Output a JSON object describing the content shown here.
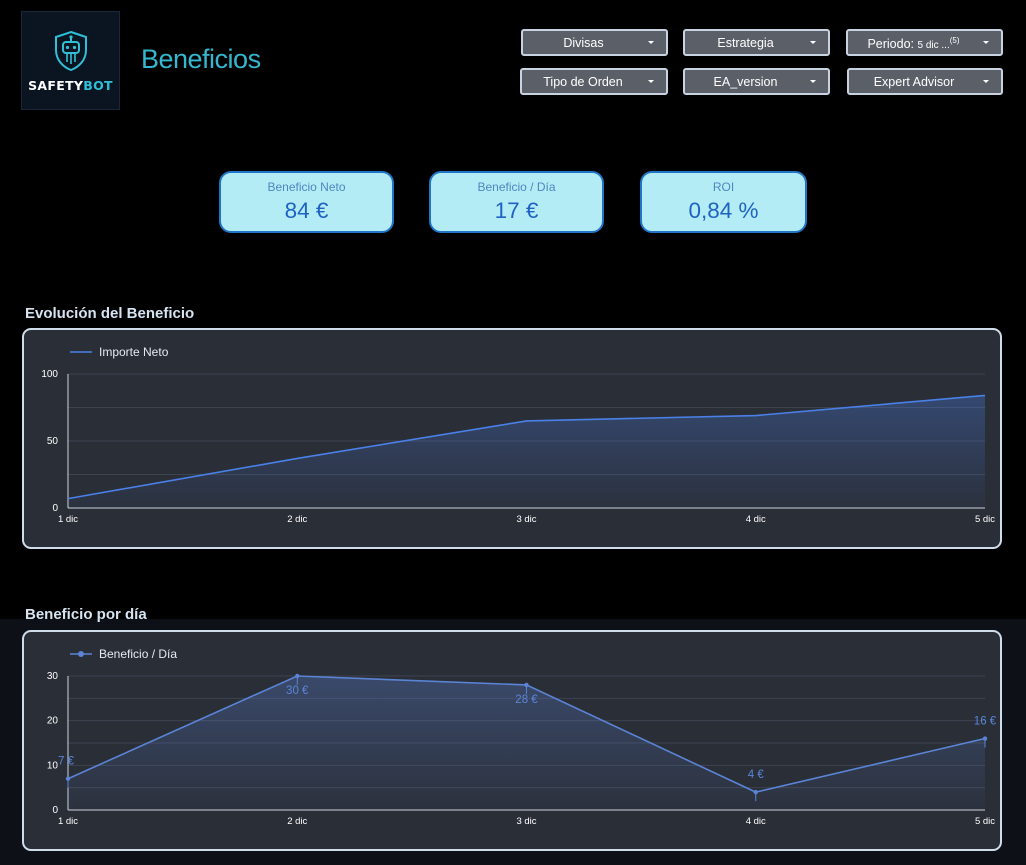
{
  "brand": {
    "logo_text_1": "SAFETY",
    "logo_text_2": "BOT",
    "icon": "robot-shield-icon",
    "accent": "#2fc0d8"
  },
  "header": {
    "title": "Beneficios"
  },
  "filters": [
    {
      "id": "divisas",
      "label": "Divisas"
    },
    {
      "id": "estrategia",
      "label": "Estrategia"
    },
    {
      "id": "periodo",
      "label": "Periodo:",
      "value": "5 dic ...",
      "count": "(5)"
    },
    {
      "id": "tipo-de-orden",
      "label": "Tipo de Orden"
    },
    {
      "id": "ea-version",
      "label": "EA_version"
    },
    {
      "id": "expert-advisor",
      "label": "Expert Advisor"
    }
  ],
  "kpis": [
    {
      "label": "Beneficio Neto",
      "value": "84 €"
    },
    {
      "label": "Beneficio / Día",
      "value": "17 €"
    },
    {
      "label": "ROI",
      "value": "0,84 %"
    }
  ],
  "sections": {
    "evolucion": "Evolución del Beneficio",
    "por_dia": "Beneficio por día"
  },
  "chart_data": [
    {
      "type": "area",
      "title": "Evolución del Beneficio",
      "categories": [
        "1 dic",
        "2 dic",
        "3 dic",
        "4 dic",
        "5 dic"
      ],
      "series": [
        {
          "name": "Importe Neto",
          "values": [
            7,
            37,
            65,
            69,
            84
          ]
        }
      ],
      "ylim": [
        0,
        100
      ],
      "yticks": [
        "0",
        "50",
        "100"
      ],
      "legend": "top-left",
      "grid": true,
      "color": "#4a80e8"
    },
    {
      "type": "line",
      "title": "Beneficio por día",
      "categories": [
        "1 dic",
        "2 dic",
        "3 dic",
        "4 dic",
        "5 dic"
      ],
      "series": [
        {
          "name": "Beneficio / Día",
          "values": [
            7,
            30,
            28,
            4,
            16
          ]
        }
      ],
      "data_labels": [
        "7 €",
        "30 €",
        "28 €",
        "4 €",
        "16 €"
      ],
      "ylim": [
        0,
        30
      ],
      "yticks": [
        "0",
        "10",
        "20",
        "30"
      ],
      "legend": "top-left",
      "grid": true,
      "color": "#5b84d6"
    }
  ]
}
